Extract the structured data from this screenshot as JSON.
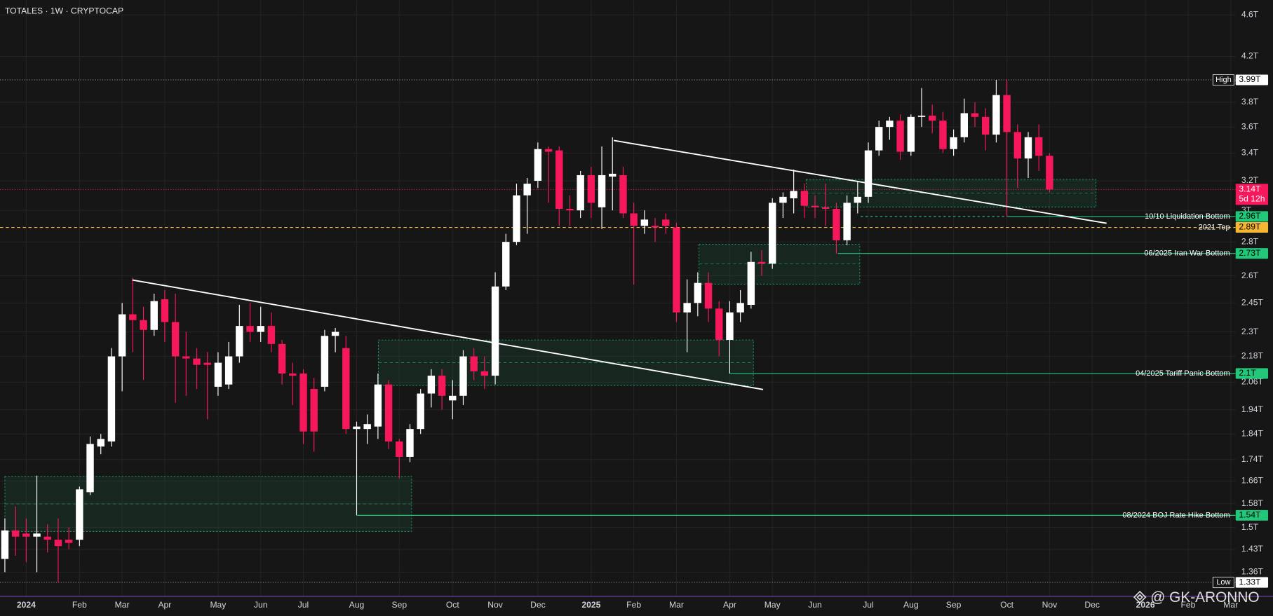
{
  "chart_data": {
    "type": "candlestick",
    "title": "TOTALES · 1W · CRYPTOCAP",
    "categories": [
      null,
      null,
      "2024",
      null,
      null,
      null,
      null,
      "Feb",
      null,
      null,
      null,
      "Mar",
      null,
      null,
      null,
      "Apr",
      null,
      null,
      null,
      null,
      "May",
      null,
      null,
      null,
      "Jun",
      null,
      null,
      null,
      "Jul",
      null,
      null,
      null,
      null,
      "Aug",
      null,
      null,
      null,
      "Sep",
      null,
      null,
      null,
      null,
      "Oct",
      null,
      null,
      null,
      "Nov",
      null,
      null,
      null,
      "Dec",
      null,
      null,
      null,
      null,
      "2025",
      null,
      null,
      null,
      "Feb",
      null,
      null,
      null,
      "Mar",
      null,
      null,
      null,
      null,
      "Apr",
      null,
      null,
      null,
      "May",
      null,
      null,
      null,
      "Jun",
      null,
      null,
      null,
      null,
      "Jul",
      null,
      null,
      null,
      "Aug",
      null,
      null,
      null,
      "Sep",
      null,
      null,
      null,
      null,
      "Oct",
      null,
      null,
      null,
      "Nov",
      null,
      null,
      null,
      "Dec",
      null,
      null,
      null,
      null,
      "2026",
      null,
      null,
      null,
      "Feb",
      null,
      null,
      null,
      "Mar"
    ],
    "open": [
      1.4,
      1.49,
      1.48,
      1.47,
      1.47,
      1.46,
      1.46,
      1.46,
      1.62,
      1.79,
      1.81,
      2.18,
      2.39,
      2.36,
      2.31,
      2.47,
      2.35,
      2.18,
      2.17,
      2.15,
      2.04,
      2.05,
      2.18,
      2.33,
      2.3,
      2.33,
      2.24,
      2.1,
      2.1,
      2.03,
      2.04,
      2.28,
      2.22,
      1.86,
      1.86,
      1.87,
      2.05,
      1.81,
      1.75,
      1.86,
      2.01,
      2.09,
      1.98,
      2.0,
      2.18,
      2.11,
      2.09,
      2.54,
      2.8,
      3.1,
      3.2,
      3.43,
      3.42,
      3.01,
      3.0,
      3.24,
      3.02,
      3.23,
      3.24,
      2.98,
      2.9,
      2.9,
      2.94,
      2.89,
      2.4,
      2.45,
      2.56,
      2.42,
      2.26,
      2.4,
      2.44,
      2.68,
      2.67,
      3.05,
      3.08,
      3.13,
      3.03,
      3.02,
      3.01,
      2.81,
      3.05,
      3.09,
      3.42,
      3.6,
      3.65,
      3.41,
      3.68,
      3.69,
      3.65,
      3.43,
      3.52,
      3.71,
      3.68,
      3.54,
      3.86,
      3.56,
      3.36,
      3.52,
      3.38,
      null,
      null,
      null,
      null,
      null,
      null,
      null,
      null,
      null,
      null,
      null,
      null,
      null,
      null,
      null,
      null,
      null
    ],
    "high": [
      1.53,
      1.57,
      1.53,
      1.68,
      1.51,
      1.53,
      1.5,
      1.64,
      1.83,
      1.84,
      2.22,
      2.45,
      2.59,
      2.43,
      2.5,
      2.52,
      2.5,
      2.3,
      2.22,
      2.2,
      2.2,
      2.25,
      2.44,
      2.45,
      2.43,
      2.4,
      2.26,
      2.15,
      2.12,
      2.08,
      2.31,
      2.32,
      2.28,
      1.89,
      1.92,
      2.1,
      2.07,
      1.82,
      1.88,
      2.03,
      2.12,
      2.12,
      2.07,
      2.21,
      2.22,
      2.18,
      2.62,
      2.85,
      3.18,
      3.22,
      3.48,
      3.45,
      3.45,
      3.1,
      3.27,
      3.3,
      3.45,
      3.52,
      3.3,
      3.05,
      3.0,
      2.95,
      2.98,
      2.92,
      2.58,
      2.62,
      2.62,
      2.46,
      2.46,
      2.52,
      2.74,
      2.75,
      3.08,
      3.12,
      3.28,
      3.18,
      3.1,
      3.18,
      3.05,
      3.1,
      3.2,
      3.48,
      3.65,
      3.68,
      3.7,
      3.7,
      3.92,
      3.78,
      3.72,
      3.58,
      3.83,
      3.8,
      3.75,
      3.99,
      3.99,
      3.62,
      3.56,
      3.62,
      3.4,
      null,
      null,
      null,
      null,
      null,
      null,
      null,
      null,
      null,
      null,
      null,
      null,
      null,
      null,
      null,
      null,
      null
    ],
    "low": [
      1.36,
      1.41,
      1.39,
      1.36,
      1.42,
      1.33,
      1.43,
      1.44,
      1.61,
      1.76,
      1.79,
      2.02,
      2.2,
      2.07,
      2.28,
      2.25,
      1.97,
      2.0,
      2.03,
      1.9,
      2.0,
      2.03,
      2.15,
      2.25,
      2.25,
      2.2,
      2.05,
      1.96,
      1.8,
      1.77,
      2.02,
      2.2,
      1.84,
      1.54,
      1.8,
      1.82,
      1.78,
      1.67,
      1.73,
      1.84,
      1.95,
      1.94,
      1.9,
      1.96,
      2.07,
      2.03,
      2.05,
      2.52,
      2.78,
      2.85,
      3.15,
      3.05,
      2.9,
      2.9,
      2.95,
      2.95,
      2.88,
      3.0,
      2.95,
      2.55,
      2.85,
      2.8,
      2.85,
      2.35,
      2.2,
      2.38,
      2.35,
      2.18,
      2.1,
      2.35,
      2.42,
      2.6,
      2.64,
      2.95,
      2.98,
      2.95,
      2.95,
      2.9,
      2.73,
      2.78,
      2.98,
      3.05,
      3.38,
      3.5,
      3.35,
      3.38,
      3.6,
      3.55,
      3.4,
      3.38,
      3.48,
      3.6,
      3.42,
      3.48,
      2.96,
      3.15,
      3.22,
      3.27,
      3.12,
      null,
      null,
      null,
      null,
      null,
      null,
      null,
      null,
      null,
      null,
      null,
      null,
      null,
      null,
      null,
      null,
      null
    ],
    "close": [
      1.49,
      1.47,
      1.47,
      1.48,
      1.46,
      1.44,
      1.45,
      1.63,
      1.8,
      1.82,
      2.18,
      2.39,
      2.36,
      2.31,
      2.46,
      2.35,
      2.18,
      2.17,
      2.14,
      2.14,
      2.15,
      2.18,
      2.33,
      2.3,
      2.33,
      2.24,
      2.1,
      2.09,
      1.85,
      1.85,
      2.28,
      2.3,
      1.86,
      1.87,
      1.88,
      2.05,
      1.81,
      1.75,
      1.86,
      2.01,
      2.09,
      2.0,
      2.0,
      2.18,
      2.11,
      2.09,
      2.54,
      2.8,
      3.1,
      3.18,
      3.43,
      3.41,
      3.01,
      3.0,
      3.24,
      3.05,
      3.24,
      3.25,
      2.98,
      2.9,
      2.94,
      2.89,
      2.9,
      2.4,
      2.45,
      2.56,
      2.42,
      2.26,
      2.4,
      2.45,
      2.68,
      2.67,
      3.05,
      3.09,
      3.13,
      3.03,
      3.02,
      3.01,
      2.81,
      3.05,
      3.09,
      3.42,
      3.6,
      3.65,
      3.41,
      3.68,
      3.69,
      3.65,
      3.43,
      3.52,
      3.71,
      3.68,
      3.54,
      3.86,
      3.56,
      3.36,
      3.52,
      3.38,
      3.14,
      null,
      null,
      null,
      null,
      null,
      null,
      null,
      null,
      null,
      null,
      null,
      null,
      null,
      null,
      null,
      null,
      null
    ],
    "up_color": "#ffffff",
    "down_color": "#f7185b",
    "log_scale": true,
    "grid": true,
    "ylim": [
      1.29,
      4.75
    ],
    "yticks": [
      {
        "value": 1.36,
        "label": "1.36T"
      },
      {
        "value": 1.43,
        "label": "1.43T"
      },
      {
        "value": 1.5,
        "label": "1.5T"
      },
      {
        "value": 1.58,
        "label": "1.58T"
      },
      {
        "value": 1.66,
        "label": "1.66T"
      },
      {
        "value": 1.74,
        "label": "1.74T"
      },
      {
        "value": 1.84,
        "label": "1.84T"
      },
      {
        "value": 1.94,
        "label": "1.94T"
      },
      {
        "value": 2.06,
        "label": "2.06T"
      },
      {
        "value": 2.18,
        "label": "2.18T"
      },
      {
        "value": 2.3,
        "label": "2.3T"
      },
      {
        "value": 2.45,
        "label": "2.45T"
      },
      {
        "value": 2.6,
        "label": "2.6T"
      },
      {
        "value": 2.8,
        "label": "2.8T"
      },
      {
        "value": 3,
        "label": "3T"
      },
      {
        "value": 3.2,
        "label": "3.2T"
      },
      {
        "value": 3.4,
        "label": "3.4T"
      },
      {
        "value": 3.6,
        "label": "3.6T"
      },
      {
        "value": 3.8,
        "label": "3.8T"
      },
      {
        "value": 4.2,
        "label": "4.2T"
      },
      {
        "value": 4.6,
        "label": "4.6T"
      }
    ],
    "high_marker": {
      "label": "High",
      "value": 3.99,
      "value_label": "3.99T"
    },
    "low_marker": {
      "label": "Low",
      "value": 1.33,
      "value_label": "1.33T"
    },
    "last_price": {
      "value": 3.14,
      "value_label": "3.14T",
      "countdown": "5d 12h",
      "color": "#f7185b"
    },
    "levels": [
      {
        "name": "10/10 Liquidation Bottom",
        "value": 2.96,
        "value_label": "2.96T",
        "color": "#22c77a"
      },
      {
        "name": "2021 Top",
        "value": 2.89,
        "value_label": "2.89T",
        "color": "#f5b731"
      },
      {
        "name": "06/2025 Iran War Bottom",
        "value": 2.73,
        "value_label": "2.73T",
        "color": "#22c77a"
      },
      {
        "name": "04/2025 Tariff Panic Bottom",
        "value": 2.1,
        "value_label": "2.1T",
        "color": "#22c77a"
      },
      {
        "name": "08/2024 BOJ Rate Hike Bottom",
        "value": 1.54,
        "value_label": "1.54T",
        "color": "#22c77a"
      }
    ],
    "watermark": "@ GK-ARONNO"
  }
}
